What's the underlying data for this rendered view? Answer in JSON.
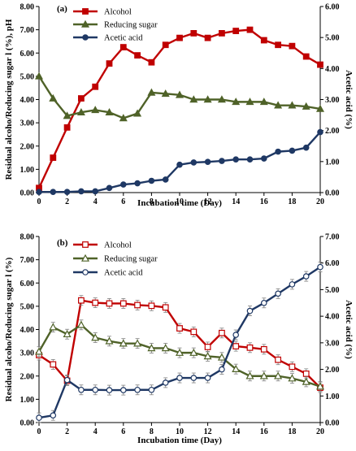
{
  "chart_data": [
    {
      "type": "line",
      "panel_label": "(a)",
      "xlabel": "Incubation time (Day)",
      "ylabel": "Residual alcoho/Reducing sugar l (%), pH",
      "y2label": "Acetic acid (%)",
      "xlim": [
        0,
        20
      ],
      "ylim": [
        0,
        8
      ],
      "y2lim": [
        0,
        6
      ],
      "xticks": [
        "0",
        "2",
        "4",
        "6",
        "8",
        "10",
        "12",
        "14",
        "16",
        "18",
        "20"
      ],
      "yticks": [
        "0.00",
        "1.00",
        "2.00",
        "3.00",
        "4.00",
        "5.00",
        "6.00",
        "7.00",
        "8.00"
      ],
      "y2ticks": [
        "0.00",
        "1.00",
        "2.00",
        "3.00",
        "4.00",
        "5.00",
        "6.00"
      ],
      "legend_position": "top-left",
      "grid": false,
      "x": [
        0,
        1,
        2,
        3,
        4,
        5,
        6,
        7,
        8,
        9,
        10,
        11,
        12,
        13,
        14,
        15,
        16,
        17,
        18,
        19,
        20
      ],
      "series": [
        {
          "name": "Alcohol",
          "axis": "left",
          "color": "#c00000",
          "marker": "square",
          "filled": true,
          "values": [
            0.2,
            1.5,
            2.8,
            4.05,
            4.55,
            5.55,
            6.25,
            5.9,
            5.6,
            6.35,
            6.65,
            6.85,
            6.65,
            6.85,
            6.95,
            7.0,
            6.55,
            6.35,
            6.3,
            5.85,
            5.5
          ]
        },
        {
          "name": "Reducing sugar",
          "axis": "left",
          "color": "#4f6228",
          "marker": "triangle",
          "filled": true,
          "values": [
            5.0,
            4.05,
            3.3,
            3.45,
            3.55,
            3.45,
            3.2,
            3.4,
            4.3,
            4.25,
            4.2,
            4.0,
            4.0,
            4.0,
            3.9,
            3.9,
            3.9,
            3.75,
            3.75,
            3.7,
            3.6
          ]
        },
        {
          "name": "Acetic acid",
          "axis": "right",
          "color": "#1f3864",
          "marker": "circle",
          "filled": true,
          "values": [
            0.02,
            0.02,
            0.02,
            0.04,
            0.04,
            0.15,
            0.26,
            0.3,
            0.38,
            0.42,
            0.9,
            0.97,
            0.99,
            1.02,
            1.07,
            1.07,
            1.1,
            1.32,
            1.35,
            1.45,
            1.95
          ]
        }
      ]
    },
    {
      "type": "line",
      "panel_label": "(b)",
      "xlabel": "Incubation time (Day)",
      "ylabel": "Residual alcoho/Reducing sugar l (%)",
      "y2label": "Acetic acid (%)",
      "xlim": [
        0,
        20
      ],
      "ylim": [
        0,
        8
      ],
      "y2lim": [
        0,
        7
      ],
      "xticks": [
        "0",
        "2",
        "4",
        "6",
        "8",
        "10",
        "12",
        "14",
        "16",
        "18",
        "20"
      ],
      "yticks": [
        "0.00",
        "1.00",
        "2.00",
        "3.00",
        "4.00",
        "5.00",
        "6.00",
        "7.00",
        "8.00"
      ],
      "y2ticks": [
        "0.00",
        "1.00",
        "2.00",
        "3.00",
        "4.00",
        "5.00",
        "6.00",
        "7.00"
      ],
      "legend_position": "top-left",
      "grid": false,
      "x": [
        0,
        1,
        2,
        3,
        4,
        5,
        6,
        7,
        8,
        9,
        10,
        11,
        12,
        13,
        14,
        15,
        16,
        17,
        18,
        19,
        20
      ],
      "series": [
        {
          "name": "Alcohol",
          "axis": "left",
          "color": "#c00000",
          "marker": "square",
          "filled": false,
          "values": [
            2.9,
            2.5,
            1.8,
            5.25,
            5.15,
            5.12,
            5.12,
            5.05,
            5.02,
            4.95,
            4.05,
            3.9,
            3.25,
            3.85,
            3.28,
            3.22,
            3.15,
            2.7,
            2.4,
            2.1,
            1.5
          ]
        },
        {
          "name": "Reducing sugar",
          "axis": "left",
          "color": "#4f6228",
          "marker": "triangle",
          "filled": false,
          "values": [
            3.05,
            4.1,
            3.8,
            4.2,
            3.65,
            3.5,
            3.4,
            3.4,
            3.2,
            3.2,
            3.0,
            3.0,
            2.85,
            2.8,
            2.3,
            2.0,
            2.0,
            2.0,
            1.9,
            1.75,
            1.55
          ]
        },
        {
          "name": "Acetic acid",
          "axis": "right",
          "color": "#1f3864",
          "marker": "circle",
          "filled": false,
          "values": [
            0.18,
            0.27,
            1.6,
            1.23,
            1.23,
            1.22,
            1.22,
            1.23,
            1.23,
            1.5,
            1.68,
            1.68,
            1.68,
            2.0,
            3.3,
            4.2,
            4.5,
            4.85,
            5.2,
            5.5,
            5.85
          ]
        }
      ]
    }
  ]
}
